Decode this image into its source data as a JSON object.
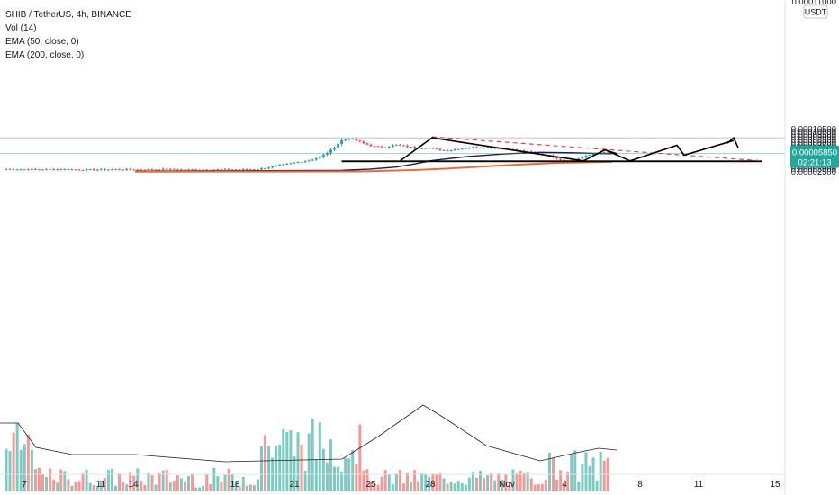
{
  "legend": {
    "symbol": "SHIB / TetherUS, 4h, BINANCE",
    "vol": "Vol (14)",
    "ema50": "EMA (50, close, 0)",
    "ema200": "EMA (200, close, 0)"
  },
  "price_axis": {
    "currency": "USDT",
    "top_partial_label": "0.00011000",
    "labels": [
      "0.00010500",
      "0.00010000",
      "0.00009500",
      "0.00009000",
      "0.00008500",
      "0.00008000",
      "0.00007500",
      "0.00007000",
      "0.00006500",
      "0.00006000",
      "0.00005500",
      "0.00005000",
      "0.00004500",
      "0.00004000",
      "0.00003500",
      "0.00003000",
      "0.00002500"
    ],
    "current_price": "0.00005850",
    "countdown": "02:21:13"
  },
  "colors": {
    "up": "#26a69a",
    "down": "#ef5350",
    "ema50": "#1a1a5e",
    "ema200": "#f06a35",
    "trendline": "#e53935",
    "price_line": "#26a69a",
    "pattern": "#000000",
    "support_fill": "#e8f5e0"
  },
  "chart_data": {
    "type": "candlestick",
    "timeframe": "4h",
    "x_labels": [
      "7",
      "11",
      "14",
      "18",
      "21",
      "25",
      "28",
      "Nov",
      "4",
      "8",
      "11",
      "15"
    ],
    "ylim": [
      2.45e-05,
      0.000111
    ],
    "series": [
      {
        "name": "EMA (50, close, 0)",
        "approx_range": [
          2.55e-05,
          6.08e-05
        ]
      },
      {
        "name": "EMA (200, close, 0)",
        "approx_range": [
          2.46e-05,
          4.32e-05
        ]
      },
      {
        "name": "Vol (14)"
      }
    ],
    "key_levels": {
      "current": 5.85e-05,
      "peak": 8.82e-05,
      "support_zone": [
        4.32e-05,
        4.47e-05
      ]
    },
    "projected_path": [
      "0.0000446",
      "0.0000740",
      "0.0000555",
      "0.0000830"
    ],
    "grid": false
  }
}
